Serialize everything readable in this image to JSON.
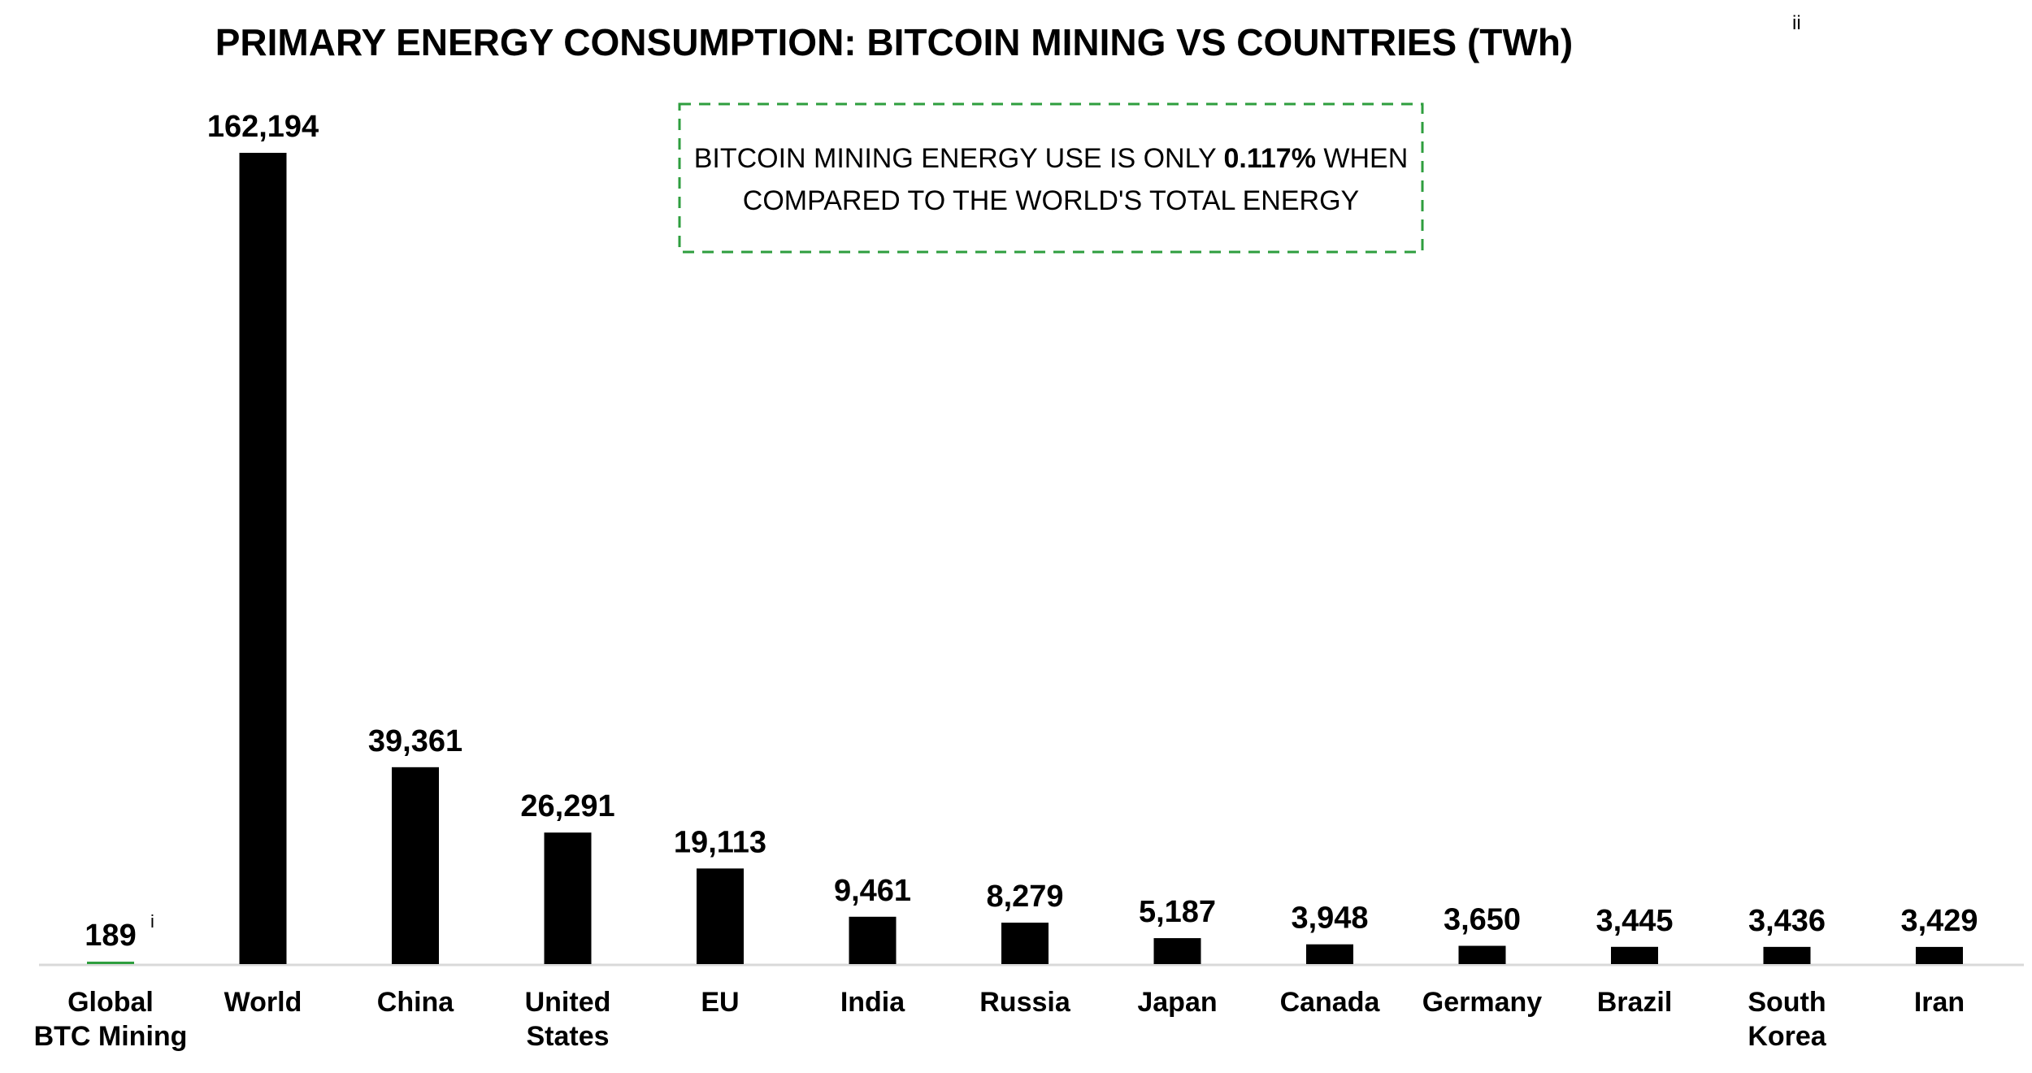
{
  "chart_data": {
    "type": "bar",
    "title": "PRIMARY ENERGY CONSUMPTION: BITCOIN MINING VS COUNTRIES (TWh)",
    "title_footnote": "ii",
    "xlabel": "",
    "ylabel": "",
    "ylim": [
      0,
      170000
    ],
    "grid": false,
    "legend": "none",
    "categories": [
      "Global BTC Mining",
      "World",
      "China",
      "United States",
      "EU",
      "India",
      "Russia",
      "Japan",
      "Canada",
      "Germany",
      "Brazil",
      "South Korea",
      "Iran"
    ],
    "category_lines": [
      [
        "Global",
        "BTC Mining"
      ],
      [
        "World"
      ],
      [
        "China"
      ],
      [
        "United",
        "States"
      ],
      [
        "EU"
      ],
      [
        "India"
      ],
      [
        "Russia"
      ],
      [
        "Japan"
      ],
      [
        "Canada"
      ],
      [
        "Germany"
      ],
      [
        "Brazil"
      ],
      [
        "South",
        "Korea"
      ],
      [
        "Iran"
      ]
    ],
    "values": [
      189,
      162194,
      39361,
      26291,
      19113,
      9461,
      8279,
      5187,
      3948,
      3650,
      3445,
      3436,
      3429
    ],
    "value_labels": [
      "189",
      "162,194",
      "39,361",
      "26,291",
      "19,113",
      "9,461",
      "8,279",
      "5,187",
      "3,948",
      "3,650",
      "3,445",
      "3,436",
      "3,429"
    ],
    "value_footnotes": [
      "i",
      "",
      "",
      "",
      "",
      "",
      "",
      "",
      "",
      "",
      "",
      "",
      ""
    ],
    "highlight_index": 0,
    "colors": {
      "bar": "#000000",
      "highlight_bar": "#2e9e3e",
      "annotation_border": "#2e9e3e",
      "axis": "#d9d9d9"
    },
    "annotation": {
      "line1_prefix": "BITCOIN MINING ENERGY USE IS ONLY ",
      "line1_bold": "0.117%",
      "line1_suffix": " WHEN",
      "line2": "COMPARED TO THE WORLD'S TOTAL ENERGY"
    }
  }
}
